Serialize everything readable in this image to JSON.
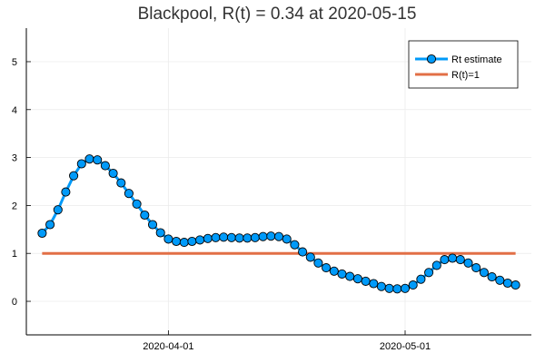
{
  "chart_data": {
    "type": "line",
    "title": "Blackpool, R(t) = 0.34 at 2020-05-15",
    "xlabel": "",
    "ylabel": "",
    "x_start": "2020-03-16",
    "x_tick_labels": [
      "2020-04-01",
      "2020-05-01"
    ],
    "y_tick_labels": [
      "0",
      "1",
      "2",
      "3",
      "4",
      "5"
    ],
    "xlim": [
      "2020-03-14",
      "2020-05-17"
    ],
    "ylim": [
      -0.7,
      5.7
    ],
    "grid": true,
    "legend_position": "top-right",
    "series": [
      {
        "name": "Rt estimate",
        "color": "#009AF9",
        "marker": "circle",
        "values": [
          1.42,
          1.6,
          1.91,
          2.28,
          2.62,
          2.87,
          2.97,
          2.95,
          2.83,
          2.67,
          2.47,
          2.25,
          2.03,
          1.8,
          1.6,
          1.43,
          1.3,
          1.25,
          1.23,
          1.25,
          1.28,
          1.31,
          1.33,
          1.34,
          1.33,
          1.32,
          1.32,
          1.33,
          1.35,
          1.36,
          1.35,
          1.3,
          1.18,
          1.03,
          0.92,
          0.8,
          0.7,
          0.63,
          0.57,
          0.52,
          0.47,
          0.42,
          0.37,
          0.31,
          0.27,
          0.26,
          0.27,
          0.34,
          0.46,
          0.6,
          0.75,
          0.87,
          0.9,
          0.87,
          0.8,
          0.7,
          0.6,
          0.51,
          0.44,
          0.38,
          0.34
        ]
      },
      {
        "name": "R(t)=1",
        "color": "#E26F46",
        "x": [
          "2020-03-16",
          "2020-05-15"
        ],
        "values": [
          1,
          1
        ]
      }
    ]
  }
}
